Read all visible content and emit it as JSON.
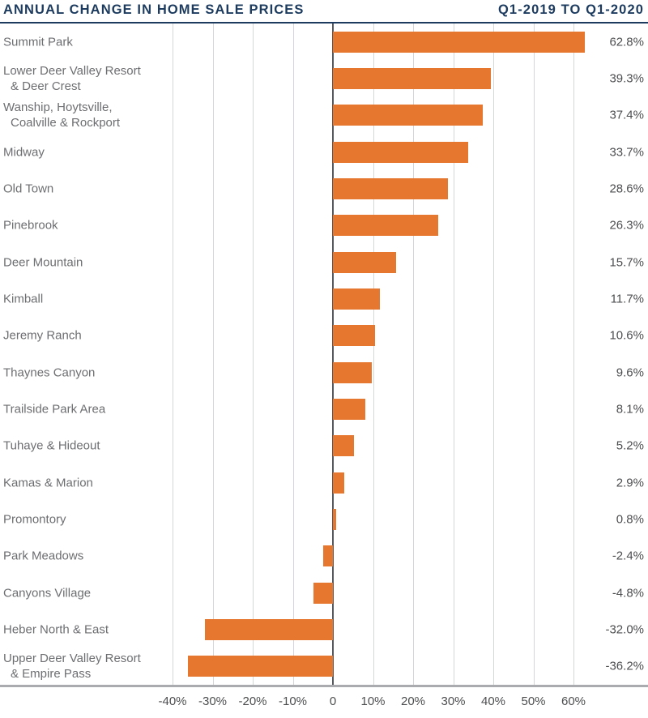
{
  "colors": {
    "title_navy": "#1C3B5E",
    "bar_orange": "#E5772E",
    "category_label": "#6D6E71",
    "value_label": "#4D4E50",
    "gridline": "#D5D6D8",
    "zero_line": "#55585C",
    "axis_line": "#A9ABAE"
  },
  "chart_data": {
    "type": "bar",
    "orientation": "horizontal",
    "title": "ANNUAL CHANGE IN HOME SALE PRICES",
    "subtitle": "Q1-2019 TO Q1-2020",
    "categories": [
      [
        "Summit Park"
      ],
      [
        "Lower Deer Valley Resort",
        "& Deer Crest"
      ],
      [
        "Wanship, Hoytsville,",
        "Coalville & Rockport"
      ],
      [
        "Midway"
      ],
      [
        "Old Town"
      ],
      [
        "Pinebrook"
      ],
      [
        "Deer Mountain"
      ],
      [
        "Kimball"
      ],
      [
        "Jeremy Ranch"
      ],
      [
        "Thaynes Canyon"
      ],
      [
        "Trailside Park Area"
      ],
      [
        "Tuhaye & Hideout"
      ],
      [
        "Kamas & Marion"
      ],
      [
        "Promontory"
      ],
      [
        "Park Meadows"
      ],
      [
        "Canyons Village"
      ],
      [
        "Heber North & East"
      ],
      [
        "Upper Deer Valley Resort",
        "& Empire Pass"
      ]
    ],
    "values": [
      62.8,
      39.3,
      37.4,
      33.7,
      28.6,
      26.3,
      15.7,
      11.7,
      10.6,
      9.6,
      8.1,
      5.2,
      2.9,
      0.8,
      -2.4,
      -4.8,
      -32.0,
      -36.2
    ],
    "value_labels": [
      "62.8%",
      "39.3%",
      "37.4%",
      "33.7%",
      "28.6%",
      "26.3%",
      "15.7%",
      "11.7%",
      "10.6%",
      "9.6%",
      "8.1%",
      "5.2%",
      "2.9%",
      "0.8%",
      "-2.4%",
      "-4.8%",
      "-32.0%",
      "-36.2%"
    ],
    "x_axis": {
      "range_shown": [
        -40,
        60
      ],
      "grid": true,
      "ticks": [
        {
          "value": -40,
          "label": "-40%"
        },
        {
          "value": -30,
          "label": "-30%"
        },
        {
          "value": -20,
          "label": "-20%"
        },
        {
          "value": -10,
          "label": "-10%"
        },
        {
          "value": 0,
          "label": "0"
        },
        {
          "value": 10,
          "label": "10%"
        },
        {
          "value": 20,
          "label": "20%"
        },
        {
          "value": 30,
          "label": "30%"
        },
        {
          "value": 40,
          "label": "40%"
        },
        {
          "value": 50,
          "label": "50%"
        },
        {
          "value": 60,
          "label": "60%"
        }
      ]
    },
    "xlabel": "",
    "ylabel": "",
    "legend": "none"
  }
}
